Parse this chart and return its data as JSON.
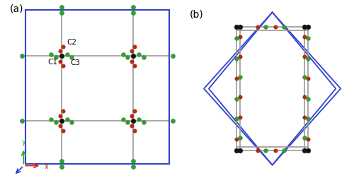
{
  "fig_width": 5.0,
  "fig_height": 2.53,
  "dpi": 100,
  "bg_color": "#ffffff",
  "panel_a_label": "(a)",
  "panel_b_label": "(b)",
  "label_C1": "C1",
  "label_C2": "C2",
  "label_C3": "C3",
  "atom_colors": {
    "black": "#111111",
    "red": "#cc2200",
    "green": "#22aa22"
  },
  "bond_color": "#999999",
  "cell_color": "#3344cc",
  "axis_x_color": "#dd2200",
  "axis_y_color": "#22aa22",
  "axis_z_color": "#2244bb",
  "s_black": 5.0,
  "s_red": 4.0,
  "s_green": 4.2
}
